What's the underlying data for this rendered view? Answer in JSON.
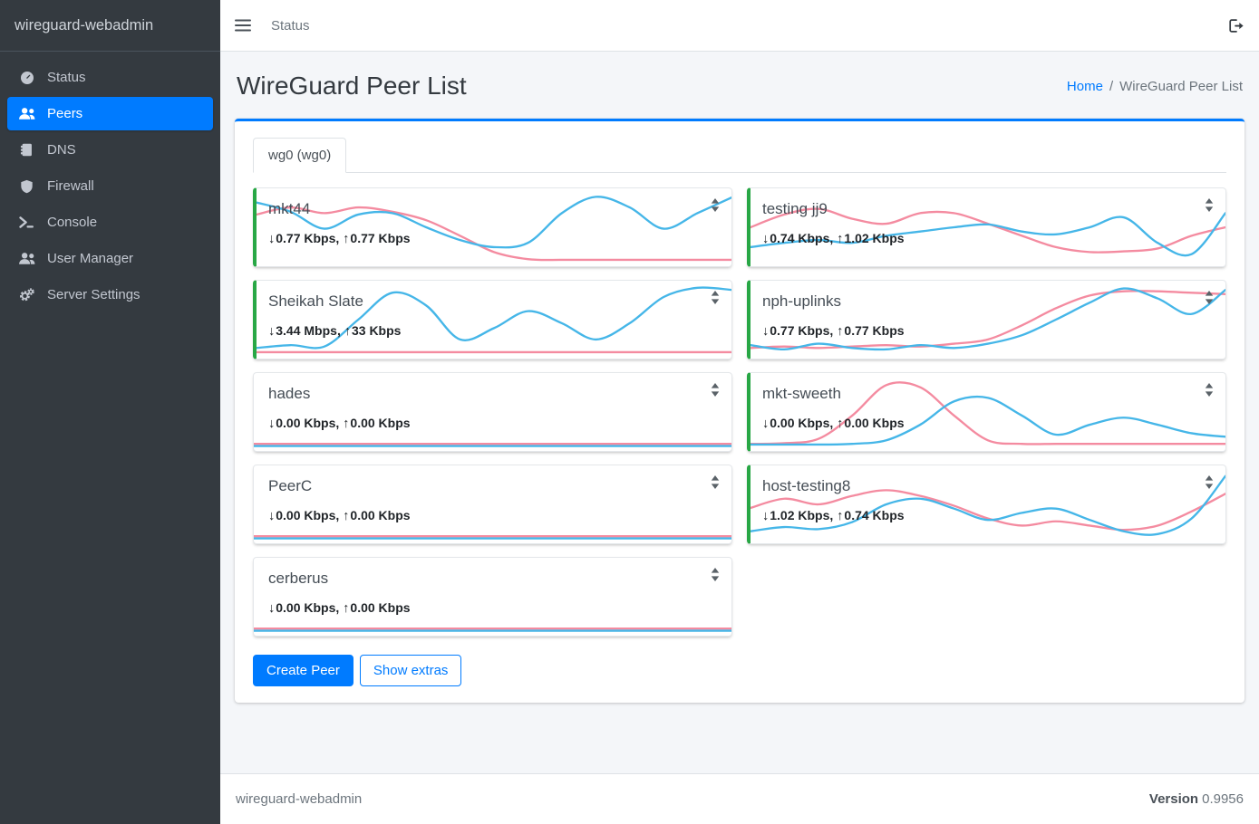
{
  "ui": {
    "down_arrow": "↓",
    "up_arrow": "↑",
    "stats_separator": ", ",
    "breadcrumb_separator": "/"
  },
  "colors": {
    "accent": "#007bff",
    "active_peer_border": "#28a745",
    "chart_rx": "#45b6e8",
    "chart_tx": "#f48ba0",
    "sidebar_bg": "#343a40"
  },
  "brand": {
    "sidebar": "wireguard-webadmin"
  },
  "topbar": {
    "menu_item": "Status"
  },
  "sidebar": {
    "items": [
      {
        "label": "Status",
        "icon": "tachometer-icon",
        "active": false
      },
      {
        "label": "Peers",
        "icon": "users-icon",
        "active": true
      },
      {
        "label": "DNS",
        "icon": "address-book-icon",
        "active": false
      },
      {
        "label": "Firewall",
        "icon": "shield-icon",
        "active": false
      },
      {
        "label": "Console",
        "icon": "terminal-icon",
        "active": false
      },
      {
        "label": "User Manager",
        "icon": "users-icon",
        "active": false
      },
      {
        "label": "Server Settings",
        "icon": "cogs-icon",
        "active": false
      }
    ]
  },
  "page": {
    "title": "WireGuard Peer List",
    "breadcrumb_home": "Home",
    "breadcrumb_current": "WireGuard Peer List"
  },
  "tabs": [
    {
      "label": "wg0 (wg0)",
      "active": true
    }
  ],
  "peer_list": {
    "columns": [
      [
        {
          "name": "mkt44",
          "down": "0.77 Kbps",
          "up": "0.77 Kbps",
          "active": true,
          "chart": {
            "rx": [
              0.15,
              0.28,
              0.52,
              0.32,
              0.3,
              0.5,
              0.68,
              0.78,
              0.72,
              0.3,
              0.07,
              0.22,
              0.52,
              0.3,
              0.08
            ],
            "tx": [
              0.32,
              0.22,
              0.3,
              0.22,
              0.28,
              0.4,
              0.62,
              0.85,
              0.95,
              0.96,
              0.96,
              0.96,
              0.96,
              0.96,
              0.96
            ]
          }
        },
        {
          "name": "Sheikah Slate",
          "down": "3.44 Mbps",
          "up": "33 Kbps",
          "active": true,
          "chart": {
            "rx": [
              0.9,
              0.86,
              0.88,
              0.5,
              0.12,
              0.3,
              0.78,
              0.62,
              0.38,
              0.55,
              0.78,
              0.55,
              0.18,
              0.05,
              0.08
            ],
            "tx": [
              0.96,
              0.96,
              0.96,
              0.96,
              0.96,
              0.96,
              0.96,
              0.96,
              0.96,
              0.96,
              0.96,
              0.96,
              0.96,
              0.96,
              0.96
            ]
          }
        },
        {
          "name": "hades",
          "down": "0.00 Kbps",
          "up": "0.00 Kbps",
          "active": false,
          "chart": {
            "rx": [
              0.98,
              0.98,
              0.98,
              0.98,
              0.98,
              0.98,
              0.98,
              0.98,
              0.98,
              0.98,
              0.98,
              0.98,
              0.98,
              0.98,
              0.98
            ],
            "tx": [
              0.95,
              0.95,
              0.95,
              0.95,
              0.95,
              0.95,
              0.95,
              0.95,
              0.95,
              0.95,
              0.95,
              0.95,
              0.95,
              0.95,
              0.95
            ]
          }
        },
        {
          "name": "PeerC",
          "down": "0.00 Kbps",
          "up": "0.00 Kbps",
          "active": false,
          "chart": {
            "rx": [
              0.98,
              0.98,
              0.98,
              0.98,
              0.98,
              0.98,
              0.98,
              0.98,
              0.98,
              0.98,
              0.98,
              0.98,
              0.98,
              0.98,
              0.98
            ],
            "tx": [
              0.95,
              0.95,
              0.95,
              0.95,
              0.95,
              0.95,
              0.95,
              0.95,
              0.95,
              0.95,
              0.95,
              0.95,
              0.95,
              0.95,
              0.95
            ]
          }
        },
        {
          "name": "cerberus",
          "down": "0.00 Kbps",
          "up": "0.00 Kbps",
          "active": false,
          "chart": {
            "rx": [
              0.98,
              0.98,
              0.98,
              0.98,
              0.98,
              0.98,
              0.98,
              0.98,
              0.98,
              0.98,
              0.98,
              0.98,
              0.98,
              0.98,
              0.98
            ],
            "tx": [
              0.95,
              0.95,
              0.95,
              0.95,
              0.95,
              0.95,
              0.95,
              0.95,
              0.95,
              0.95,
              0.95,
              0.95,
              0.95,
              0.95,
              0.95
            ]
          }
        }
      ],
      [
        {
          "name": "testing jj9",
          "down": "0.74 Kbps",
          "up": "1.02 Kbps",
          "active": true,
          "chart": {
            "rx": [
              0.78,
              0.72,
              0.68,
              0.72,
              0.62,
              0.56,
              0.5,
              0.46,
              0.56,
              0.6,
              0.5,
              0.36,
              0.72,
              0.88,
              0.3
            ],
            "tx": [
              0.5,
              0.32,
              0.24,
              0.38,
              0.45,
              0.3,
              0.3,
              0.45,
              0.62,
              0.78,
              0.85,
              0.84,
              0.8,
              0.62,
              0.5
            ]
          }
        },
        {
          "name": "nph-uplinks",
          "down": "0.77 Kbps",
          "up": "0.77 Kbps",
          "active": true,
          "chart": {
            "rx": [
              0.86,
              0.92,
              0.84,
              0.9,
              0.92,
              0.86,
              0.9,
              0.84,
              0.72,
              0.5,
              0.26,
              0.06,
              0.2,
              0.42,
              0.08
            ],
            "tx": [
              0.9,
              0.88,
              0.9,
              0.88,
              0.86,
              0.88,
              0.84,
              0.78,
              0.58,
              0.34,
              0.16,
              0.1,
              0.1,
              0.12,
              0.14
            ]
          }
        },
        {
          "name": "mkt-sweeth",
          "down": "0.00 Kbps",
          "up": "0.00 Kbps",
          "active": true,
          "chart": {
            "rx": [
              0.96,
              0.96,
              0.96,
              0.95,
              0.9,
              0.68,
              0.35,
              0.3,
              0.55,
              0.82,
              0.68,
              0.58,
              0.68,
              0.8,
              0.85
            ],
            "tx": [
              0.95,
              0.94,
              0.88,
              0.55,
              0.12,
              0.15,
              0.55,
              0.9,
              0.95,
              0.95,
              0.95,
              0.95,
              0.95,
              0.95,
              0.95
            ]
          }
        },
        {
          "name": "host-testing8",
          "down": "1.02 Kbps",
          "up": "0.74 Kbps",
          "active": true,
          "chart": {
            "rx": [
              0.88,
              0.82,
              0.85,
              0.75,
              0.5,
              0.42,
              0.56,
              0.72,
              0.62,
              0.56,
              0.72,
              0.88,
              0.92,
              0.7,
              0.1
            ],
            "tx": [
              0.55,
              0.42,
              0.5,
              0.38,
              0.3,
              0.38,
              0.52,
              0.7,
              0.8,
              0.74,
              0.8,
              0.86,
              0.8,
              0.6,
              0.35
            ]
          }
        }
      ]
    ]
  },
  "actions": {
    "create_peer": "Create Peer",
    "show_extras": "Show extras"
  },
  "footer": {
    "brand": "wireguard-webadmin",
    "version_label": "Version",
    "version": "0.9956"
  }
}
